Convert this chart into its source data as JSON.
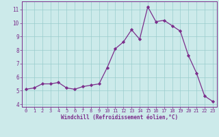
{
  "x": [
    0,
    1,
    2,
    3,
    4,
    5,
    6,
    7,
    8,
    9,
    10,
    11,
    12,
    13,
    14,
    15,
    16,
    17,
    18,
    19,
    20,
    21,
    22,
    23
  ],
  "y": [
    5.1,
    5.2,
    5.5,
    5.5,
    5.6,
    5.2,
    5.1,
    5.3,
    5.4,
    5.5,
    6.7,
    8.1,
    8.6,
    9.5,
    8.8,
    11.2,
    10.1,
    10.2,
    9.8,
    9.4,
    7.6,
    6.3,
    4.6,
    4.2
  ],
  "xlabel": "Windchill (Refroidissement éolien,°C)",
  "xlim": [
    -0.5,
    23.5
  ],
  "ylim": [
    3.8,
    11.6
  ],
  "yticks": [
    4,
    5,
    6,
    7,
    8,
    9,
    10,
    11
  ],
  "xticks": [
    0,
    1,
    2,
    3,
    4,
    5,
    6,
    7,
    8,
    9,
    10,
    11,
    12,
    13,
    14,
    15,
    16,
    17,
    18,
    19,
    20,
    21,
    22,
    23
  ],
  "line_color": "#7b2d8b",
  "marker_color": "#7b2d8b",
  "bg_color": "#cceaea",
  "grid_color": "#99cccc",
  "axis_label_color": "#7b2d8b",
  "tick_label_color": "#7b2d8b",
  "spine_color": "#7b2d8b",
  "font_size_ticks": 5,
  "font_size_xlabel": 5.5
}
